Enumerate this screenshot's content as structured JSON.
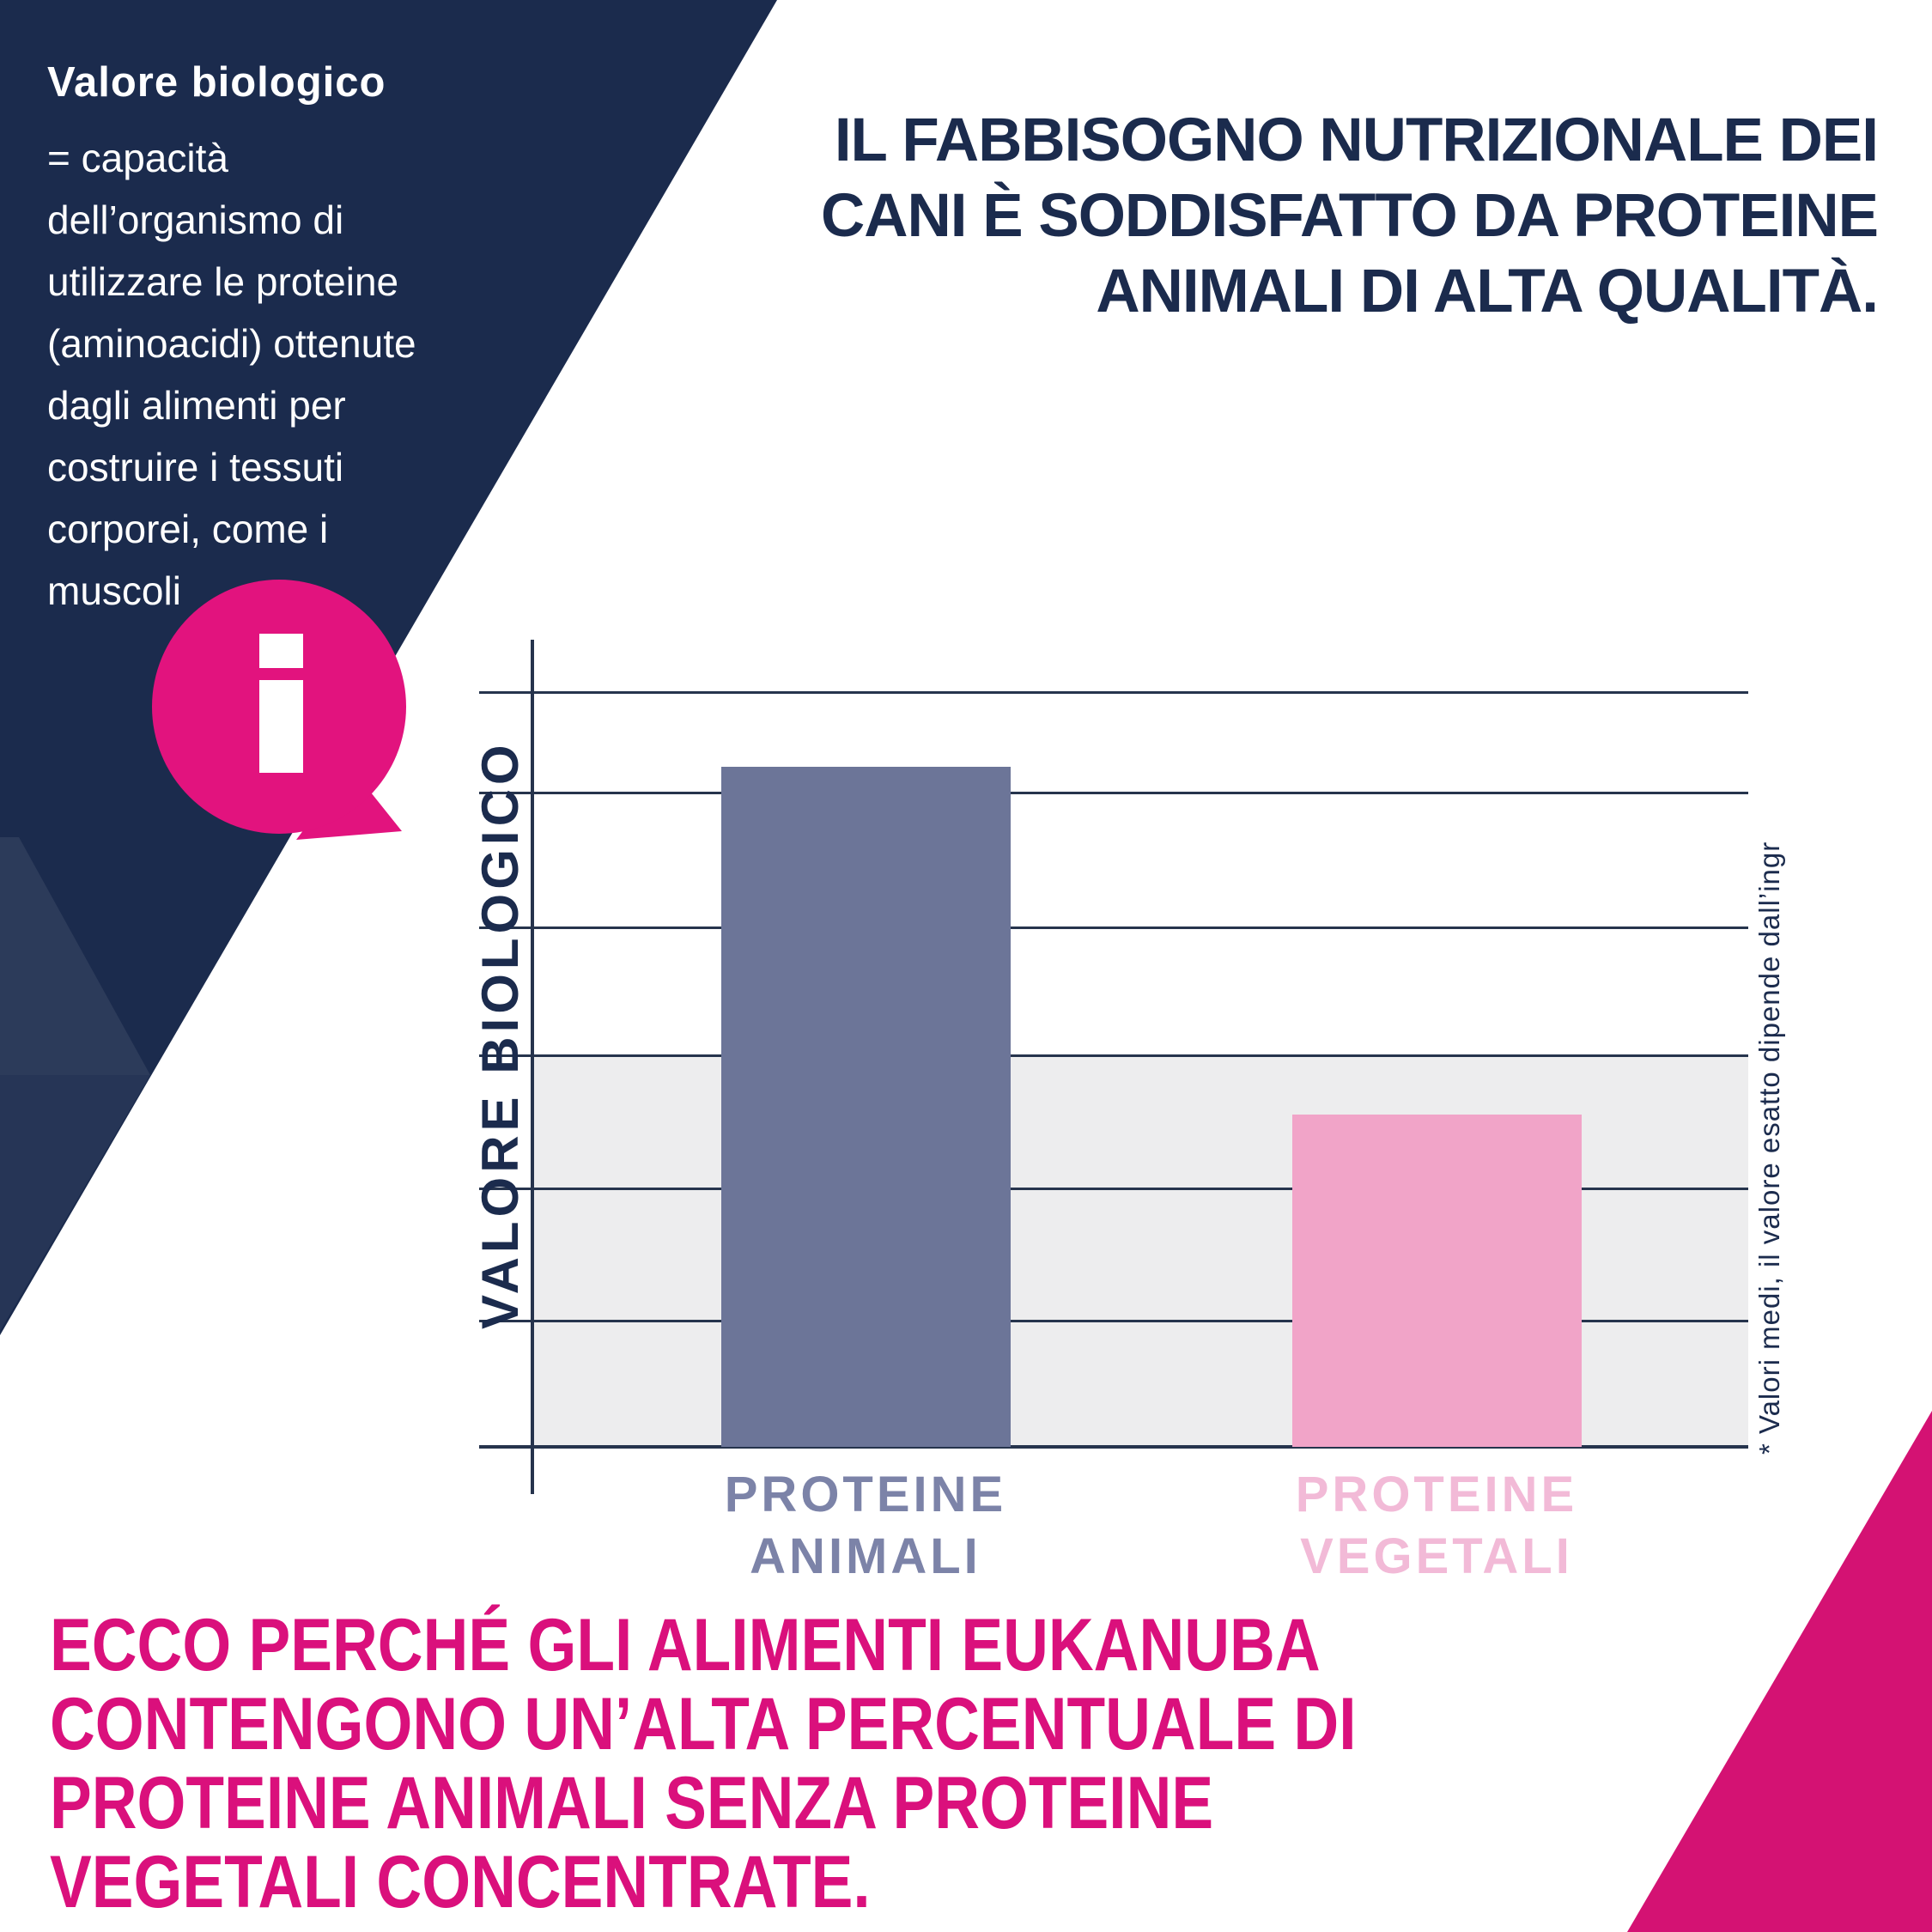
{
  "info_panel": {
    "heading": "Valore biologico",
    "definition": "= capacità\ndell’organismo di\nutilizzare le proteine\n(aminoacidi) ottenute\ndagli alimenti per\ncostruire i tessuti\ncorporei, come i\nmuscoli",
    "info_icon": "info-speech-bubble"
  },
  "headline": "IL FABBISOGNO NUTRIZIONALE DEI\nCANI È SODDISFATTO DA PROTEINE\nANIMALI DI ALTA QUALITÀ.",
  "chart_data": {
    "type": "bar",
    "title": "",
    "xlabel": "",
    "ylabel": "VALORE BIOLOGICO",
    "categories": [
      "PROTEINE\nANIMALI",
      "PROTEINE\nVEGETALI"
    ],
    "values": [
      90,
      44
    ],
    "ylim": [
      0,
      100
    ],
    "grid": true,
    "gridline_count": 7,
    "axis_numbers_shown": false,
    "legend": "none",
    "bar_colors": [
      "#6C7598",
      "#F1A4C8"
    ],
    "label_colors": [
      "#7C83A8",
      "#F2BAD7"
    ],
    "footnote": "* Valori medi, il valore esatto dipende dall’ingr"
  },
  "conclusion": "ECCO PERCHÉ GLI ALIMENTI EUKANUBA\nCONTENGONO UN’ALTA PERCENTUALE DI\nPROTEINE ANIMALI SENZA PROTEINE\nVEGETALI CONCENTRATE.",
  "colors": {
    "navy": "#1B2B4D",
    "navy_light_overlay": "#2C3E61",
    "magenta_bubble": "#E2137E",
    "magenta_triangle": "#D41273",
    "magenta_text": "#DA107C",
    "gray_band": "#EDEDEE",
    "gridline": "#26344D",
    "white": "#FFFFFF"
  }
}
